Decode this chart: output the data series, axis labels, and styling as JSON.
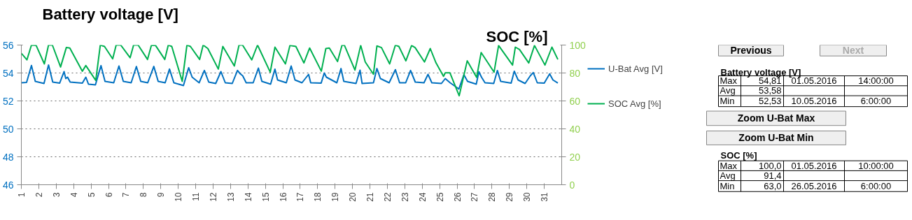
{
  "chart_data": {
    "type": "line",
    "title": "Battery voltage [V]",
    "y2label": "SOC [%]",
    "xlim": [
      1,
      32
    ],
    "xticks": [
      1,
      2,
      3,
      4,
      5,
      6,
      7,
      8,
      9,
      10,
      11,
      12,
      13,
      14,
      15,
      16,
      17,
      18,
      19,
      20,
      21,
      22,
      23,
      24,
      25,
      26,
      27,
      28,
      29,
      30,
      31
    ],
    "ylim": [
      46,
      56
    ],
    "yticks": [
      46,
      48,
      50,
      52,
      54,
      56
    ],
    "y2lim": [
      0,
      100
    ],
    "y2ticks": [
      0,
      20,
      40,
      60,
      80,
      100
    ],
    "grid": "y",
    "legend": "right",
    "line_style": "solid",
    "marker": "none",
    "series": [
      {
        "name": "U-Bat Avg [V]",
        "color": "#0070c0",
        "x": [
          1.0,
          1.3,
          1.58,
          1.8,
          2.3,
          2.56,
          2.8,
          3.2,
          3.45,
          3.55,
          3.65,
          3.8,
          4.5,
          4.7,
          4.85,
          5.25,
          5.57,
          5.8,
          6.3,
          6.6,
          6.85,
          7.3,
          7.6,
          7.85,
          8.25,
          8.6,
          8.85,
          9.25,
          9.5,
          9.75,
          10.3,
          10.6,
          10.8,
          11.2,
          11.5,
          11.75,
          12.15,
          12.45,
          12.7,
          13.1,
          13.4,
          13.55,
          13.7,
          13.9,
          14.3,
          14.6,
          14.8,
          15.3,
          15.55,
          15.7,
          16.2,
          16.48,
          16.7,
          17.1,
          17.48,
          17.6,
          18.2,
          18.38,
          18.5,
          19.1,
          19.34,
          19.5,
          20.2,
          20.43,
          20.55,
          21.2,
          21.4,
          21.6,
          22.1,
          22.46,
          22.7,
          23.05,
          23.33,
          23.6,
          24.1,
          24.33,
          24.55,
          25.1,
          25.32,
          25.6,
          26.05,
          26.1,
          26.39,
          26.6,
          27.1,
          27.25,
          27.4,
          27.6,
          28.1,
          28.31,
          28.5,
          29.1,
          29.28,
          29.5,
          29.9,
          30.2,
          30.37,
          30.6,
          31.0,
          31.31,
          31.5,
          31.78
        ],
        "values": [
          53.3,
          53.32,
          54.54,
          53.4,
          53.25,
          54.57,
          53.35,
          53.28,
          54.1,
          53.6,
          53.7,
          53.35,
          53.28,
          53.7,
          53.2,
          53.15,
          54.53,
          53.4,
          53.3,
          54.5,
          53.4,
          53.3,
          54.46,
          53.4,
          53.3,
          54.47,
          53.4,
          53.3,
          54.28,
          53.3,
          53.1,
          54.38,
          53.7,
          53.3,
          54.18,
          53.35,
          53.25,
          54.1,
          53.3,
          53.25,
          54.18,
          53.95,
          53.8,
          53.3,
          53.3,
          54.35,
          53.4,
          53.2,
          54.28,
          53.5,
          53.3,
          54.5,
          53.5,
          53.3,
          53.9,
          53.3,
          53.28,
          54.0,
          53.7,
          53.3,
          54.32,
          53.4,
          53.25,
          54.2,
          53.25,
          53.3,
          54.32,
          53.6,
          53.3,
          54.24,
          53.3,
          53.3,
          54.18,
          53.35,
          53.3,
          53.9,
          53.3,
          53.25,
          53.6,
          53.3,
          52.9,
          52.85,
          53.88,
          53.4,
          53.2,
          54.09,
          53.7,
          53.3,
          53.25,
          54.18,
          53.4,
          53.28,
          54.13,
          53.5,
          53.25,
          53.8,
          54.03,
          53.3,
          53.28,
          53.94,
          53.5,
          53.28
        ]
      },
      {
        "name": "SOC Avg [%]",
        "color": "#00b050",
        "axis": "y2",
        "x": [
          1.0,
          1.32,
          1.58,
          1.85,
          2.32,
          2.56,
          2.78,
          3.25,
          3.58,
          3.78,
          4.5,
          4.7,
          5.27,
          5.53,
          5.77,
          6.24,
          6.44,
          6.7,
          7.24,
          7.44,
          7.7,
          8.24,
          8.46,
          8.7,
          9.23,
          9.43,
          9.63,
          10.23,
          10.5,
          10.7,
          11.23,
          11.43,
          11.7,
          12.3,
          12.56,
          13.22,
          13.49,
          13.69,
          14.22,
          14.55,
          15.28,
          15.55,
          16.15,
          16.41,
          16.75,
          17.21,
          17.54,
          18.21,
          18.47,
          18.67,
          19.14,
          19.4,
          19.54,
          20.14,
          20.47,
          20.73,
          21.2,
          21.4,
          21.66,
          22.13,
          22.46,
          22.66,
          23.06,
          23.39,
          23.59,
          24.13,
          24.46,
          24.79,
          25.22,
          25.32,
          25.59,
          26.12,
          26.58,
          27.12,
          27.38,
          28.12,
          28.38,
          29.18,
          29.34,
          29.58,
          30.11,
          30.44,
          31.04,
          31.44,
          31.78
        ],
        "values": [
          94.1,
          89.4,
          100,
          99.7,
          86.5,
          100,
          100,
          84.3,
          98.2,
          97.9,
          81.3,
          85.3,
          74.7,
          100,
          99,
          90.1,
          100,
          100,
          90.9,
          100,
          100,
          89.7,
          99.7,
          99.7,
          89.7,
          100,
          99,
          74.0,
          100,
          99,
          89.7,
          100,
          97.5,
          82.8,
          99,
          85,
          100,
          100,
          89.4,
          100,
          80.6,
          98.5,
          86.5,
          99.7,
          99,
          87.2,
          97.9,
          81.3,
          97.5,
          97.9,
          88.2,
          100,
          99.7,
          82.1,
          99.7,
          87.9,
          79.1,
          99.4,
          98.2,
          86.5,
          100,
          99,
          88.7,
          99.7,
          98.2,
          87.9,
          97.5,
          87.2,
          77.6,
          80.1,
          80.1,
          63.7,
          88.7,
          76.9,
          94.6,
          80.6,
          99.7,
          85.7,
          98.5,
          96.8,
          87.2,
          99.7,
          85.7,
          98.5,
          89.7
        ]
      }
    ],
    "annotations": [
      "Previous",
      "Next",
      "Battery voltage [V]",
      "Max",
      "54,81",
      "01.05.2016",
      "14:00:00",
      "Avg",
      "53,58",
      "Min",
      "52,53",
      "10.05.2016",
      "6:00:00",
      "Zoom U-Bat Max",
      "Zoom U-Bat Min",
      "SOC [%]",
      "Max",
      "100,0",
      "01.05.2016",
      "10:00:00",
      "Avg",
      "91,4",
      "Min",
      "63,0",
      "26.05.2016",
      "6:00:00"
    ]
  }
}
